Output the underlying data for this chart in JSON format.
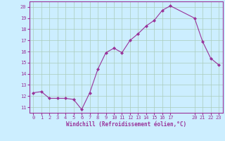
{
  "x": [
    0,
    1,
    2,
    3,
    4,
    5,
    6,
    7,
    8,
    9,
    10,
    11,
    12,
    13,
    14,
    15,
    16,
    17,
    20,
    21,
    22,
    23
  ],
  "y": [
    12.3,
    12.4,
    11.8,
    11.8,
    11.8,
    11.7,
    10.8,
    12.3,
    14.4,
    15.9,
    16.3,
    15.9,
    17.0,
    17.6,
    18.3,
    18.8,
    19.7,
    20.1,
    19.0,
    16.9,
    15.4,
    14.8
  ],
  "line_color": "#993399",
  "marker_color": "#993399",
  "bg_color": "#cceeff",
  "grid_color": "#aaccbb",
  "xlabel": "Windchill (Refroidissement éolien,°C)",
  "ylim": [
    10.5,
    20.5
  ],
  "xlim": [
    -0.5,
    23.5
  ],
  "yticks": [
    11,
    12,
    13,
    14,
    15,
    16,
    17,
    18,
    19,
    20
  ],
  "xticks": [
    0,
    1,
    2,
    3,
    4,
    5,
    6,
    7,
    8,
    9,
    10,
    11,
    12,
    13,
    14,
    15,
    16,
    17,
    20,
    21,
    22,
    23
  ],
  "font_color": "#993399",
  "tick_fontsize": 5.0,
  "xlabel_fontsize": 5.5
}
